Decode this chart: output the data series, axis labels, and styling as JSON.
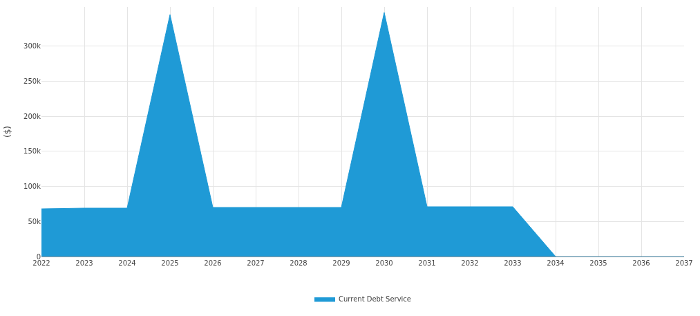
{
  "chart_data": {
    "type": "area",
    "ylabel": "($)",
    "categories": [
      "2022",
      "2023",
      "2024",
      "2025",
      "2026",
      "2027",
      "2028",
      "2029",
      "2030",
      "2031",
      "2032",
      "2033",
      "2034",
      "2035",
      "2036",
      "2037"
    ],
    "series": [
      {
        "name": "Current Debt Service",
        "color": "#1f9ad6",
        "values": [
          68000,
          69000,
          69000,
          345000,
          70000,
          70000,
          70000,
          70000,
          348000,
          71000,
          71000,
          71000,
          0,
          0,
          0,
          0
        ]
      }
    ],
    "ylim": [
      0,
      356000
    ],
    "yticks": [
      {
        "value": 0,
        "label": "0"
      },
      {
        "value": 50000,
        "label": "50k"
      },
      {
        "value": 100000,
        "label": "100k"
      },
      {
        "value": 150000,
        "label": "150k"
      },
      {
        "value": 200000,
        "label": "200k"
      },
      {
        "value": 250000,
        "label": "250k"
      },
      {
        "value": 300000,
        "label": "300k"
      }
    ],
    "grid": true,
    "legend": "bottom"
  }
}
